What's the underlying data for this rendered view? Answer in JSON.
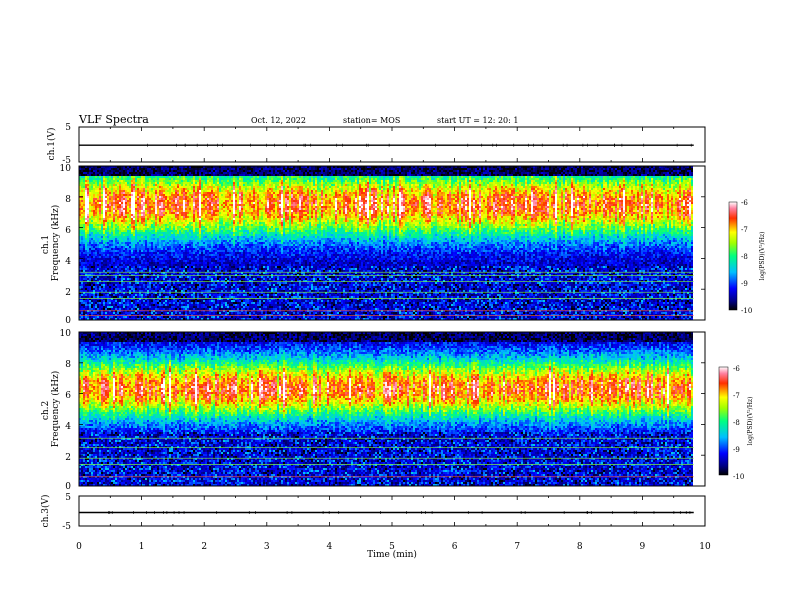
{
  "header": {
    "title": "VLF Spectra",
    "date": "Oct. 12, 2022",
    "station": "station= MOS",
    "start": "start  UT =   12: 20: 1"
  },
  "chart_data": [
    {
      "type": "line",
      "name": "ch1-voltage",
      "ylabel": "ch.1(V)",
      "xlim": [
        0,
        10
      ],
      "ylim": [
        -5,
        5
      ],
      "yticks": [
        "5",
        "-5"
      ],
      "level": -0.2,
      "data_end_min": 9.82
    },
    {
      "type": "heatmap",
      "name": "ch1-spectrogram",
      "ylabel": "ch.1\nFrequency (kHz)",
      "xlim": [
        0,
        10
      ],
      "ylim": [
        0,
        10
      ],
      "yticks": [
        "0",
        "2",
        "4",
        "6",
        "8",
        "10"
      ],
      "data_end_min": 9.82,
      "band_center_khz": 7.5,
      "noise_lines_khz": [
        0.3,
        0.6,
        1.4,
        1.8,
        2.5,
        2.9,
        3.1
      ],
      "colorbar": {
        "label": "log(PSD)(V²/Hz)",
        "range": [
          -10,
          -6
        ],
        "ticks": [
          "-6",
          "-7",
          "-8",
          "-9",
          "-10"
        ]
      }
    },
    {
      "type": "heatmap",
      "name": "ch2-spectrogram",
      "ylabel": "ch.2\nFrequency (kHz)",
      "xlim": [
        0,
        10
      ],
      "ylim": [
        0,
        10
      ],
      "yticks": [
        "0",
        "2",
        "4",
        "6",
        "8",
        "10"
      ],
      "data_end_min": 9.82,
      "band_center_khz": 6.3,
      "noise_lines_khz": [
        0.6,
        1.4,
        1.8,
        2.5,
        3.1
      ],
      "colorbar": {
        "label": "log(PSD)(V²/Hz)",
        "range": [
          -10,
          -6
        ],
        "ticks": [
          "-6",
          "-7",
          "-8",
          "-9",
          "-10"
        ]
      }
    },
    {
      "type": "line",
      "name": "ch3-voltage",
      "ylabel": "ch.3(V)",
      "xlim": [
        0,
        10
      ],
      "ylim": [
        -5,
        5
      ],
      "yticks": [
        "5",
        "-5"
      ],
      "level": -0.5,
      "data_end_min": 9.82
    }
  ],
  "xaxis": {
    "label": "Time  (min)",
    "ticks": [
      "0",
      "1",
      "2",
      "3",
      "4",
      "5",
      "6",
      "7",
      "8",
      "9",
      "10"
    ]
  }
}
